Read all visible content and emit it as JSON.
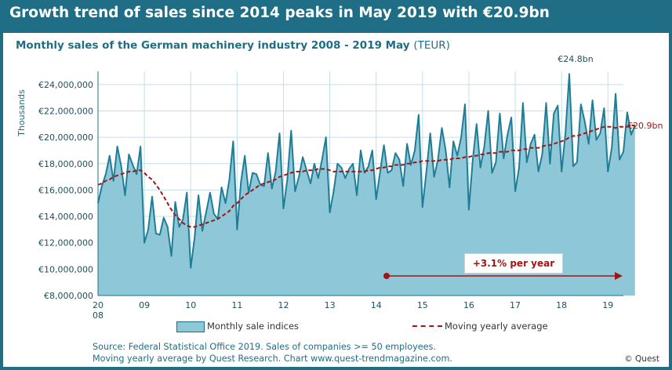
{
  "header": {
    "title": "Growth trend of sales since 2014 peaks in May 2019 with €20.9bn"
  },
  "subtitle": {
    "text": "Monthly sales of the German machinery industry 2008 - 2019 May",
    "unit": "(TEUR)"
  },
  "legend": {
    "area_label": "Monthly sale indices",
    "line_label": "Moving yearly average"
  },
  "annotation": {
    "growth": "+3.1% per year",
    "peak_label": "€24.8bn",
    "last_label": "€20.9bn"
  },
  "footer": {
    "line1": "Source: Federal Statistical Office 2019. Sales of companies >= 50 employees.",
    "line2": "Moving yearly average by Quest Research. Chart www.quest-trendmagazine.com.",
    "copyright": "© Quest"
  },
  "colors": {
    "frame": "#1f6e86",
    "area": "#8ec8d8",
    "line": "#1f7d96",
    "average": "#a01515",
    "grid": "#bfe0ea"
  },
  "chart_data": {
    "type": "area",
    "ylabel": "Thousands",
    "ylim": [
      8000000,
      25000000
    ],
    "y_ticks": [
      "€8,000,000",
      "€10,000,000",
      "€12,000,000",
      "€14,000,000",
      "€16,000,000",
      "€18,000,000",
      "€20,000,000",
      "€22,000,000",
      "€24,000,000"
    ],
    "x_ticks": [
      "20",
      "09",
      "10",
      "11",
      "12",
      "13",
      "14",
      "15",
      "16",
      "17",
      "18",
      "19"
    ],
    "x_tick_sub": "08",
    "series": [
      {
        "name": "Monthly sale indices",
        "start": "2008-01",
        "values": [
          15000000,
          16300000,
          17200000,
          18600000,
          16700000,
          19300000,
          17800000,
          15600000,
          18700000,
          17900000,
          17200000,
          19300000,
          12000000,
          13000000,
          15500000,
          12700000,
          12600000,
          13900000,
          13200000,
          11000000,
          15100000,
          13200000,
          13800000,
          15800000,
          10100000,
          12400000,
          15600000,
          12900000,
          14300000,
          15800000,
          14200000,
          13800000,
          16200000,
          15000000,
          16800000,
          19700000,
          13000000,
          16600000,
          18600000,
          15800000,
          17300000,
          17200000,
          16400000,
          16300000,
          18800000,
          16100000,
          17400000,
          20300000,
          14600000,
          16800000,
          20500000,
          15900000,
          17000000,
          18500000,
          17500000,
          16500000,
          18000000,
          16900000,
          18300000,
          20000000,
          14300000,
          15900000,
          18000000,
          17700000,
          16900000,
          17600000,
          18000000,
          15600000,
          19000000,
          17300000,
          17800000,
          19000000,
          15300000,
          17300000,
          19400000,
          17300000,
          17500000,
          18800000,
          18300000,
          16300000,
          19500000,
          17900000,
          19000000,
          21700000,
          14700000,
          17400000,
          20300000,
          17000000,
          18300000,
          20700000,
          19000000,
          16200000,
          19700000,
          18600000,
          20000000,
          22500000,
          14500000,
          18300000,
          21000000,
          17700000,
          19300000,
          22000000,
          17300000,
          18100000,
          21800000,
          18400000,
          20200000,
          21500000,
          15900000,
          17700000,
          22600000,
          18100000,
          19500000,
          20200000,
          17400000,
          18700000,
          22600000,
          18000000,
          21800000,
          22400000,
          17400000,
          20300000,
          24800000,
          17800000,
          18100000,
          22500000,
          21200000,
          19500000,
          22800000,
          19800000,
          20300000,
          22200000,
          17400000,
          19200000,
          23300000,
          18300000,
          18900000,
          21900000,
          20200000,
          20900000
        ]
      },
      {
        "name": "Moving yearly average",
        "start": "2008-01",
        "values": [
          16400000,
          16500000,
          16700000,
          16800000,
          17000000,
          17100000,
          17200000,
          17300000,
          17400000,
          17400000,
          17500000,
          17500000,
          17300000,
          17000000,
          16800000,
          16400000,
          16000000,
          15500000,
          15000000,
          14500000,
          14100000,
          13800000,
          13500000,
          13300000,
          13200000,
          13200000,
          13300000,
          13400000,
          13500000,
          13600000,
          13700000,
          13800000,
          14000000,
          14200000,
          14400000,
          14800000,
          15000000,
          15300000,
          15600000,
          15800000,
          16000000,
          16200000,
          16400000,
          16500000,
          16600000,
          16700000,
          16800000,
          17000000,
          17100000,
          17200000,
          17300000,
          17400000,
          17400000,
          17400000,
          17500000,
          17500000,
          17500000,
          17600000,
          17600000,
          17600000,
          17500000,
          17400000,
          17400000,
          17400000,
          17400000,
          17400000,
          17400000,
          17400000,
          17400000,
          17400000,
          17500000,
          17500000,
          17600000,
          17700000,
          17700000,
          17800000,
          17800000,
          17900000,
          17900000,
          17900000,
          18000000,
          18000000,
          18100000,
          18100000,
          18200000,
          18200000,
          18200000,
          18200000,
          18200000,
          18300000,
          18300000,
          18300000,
          18400000,
          18400000,
          18400000,
          18500000,
          18500000,
          18600000,
          18600000,
          18700000,
          18700000,
          18800000,
          18800000,
          18800000,
          18900000,
          18900000,
          18900000,
          19000000,
          19000000,
          19000000,
          19100000,
          19100000,
          19200000,
          19200000,
          19200000,
          19300000,
          19400000,
          19400000,
          19500000,
          19600000,
          19700000,
          19800000,
          20000000,
          20100000,
          20100000,
          20200000,
          20300000,
          20400000,
          20500000,
          20600000,
          20700000,
          20800000,
          20800000,
          20800000,
          20700000,
          20800000,
          20800000,
          20800000,
          20900000,
          20900000
        ]
      }
    ]
  }
}
